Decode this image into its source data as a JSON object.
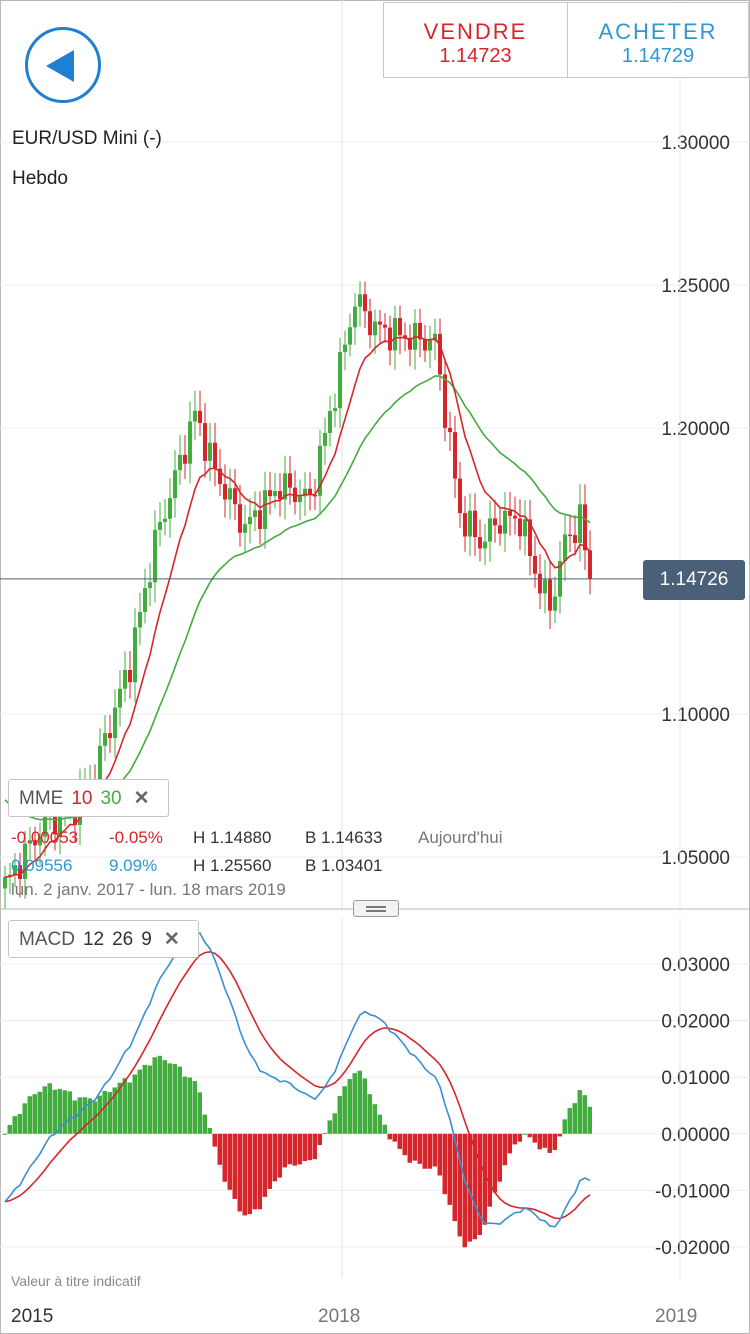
{
  "header": {
    "sell": {
      "label": "VENDRE",
      "price": "1.14723"
    },
    "buy": {
      "label": "ACHETER",
      "price": "1.14729"
    }
  },
  "instrument": "EUR/USD Mini (-)",
  "period": "Hebdo",
  "current_price": "1.14726",
  "mme_box": {
    "label": "MME",
    "p1": "10",
    "p2": "30"
  },
  "stats": {
    "row1": {
      "change": "-0.00053",
      "pct": "-0.05%",
      "high": "H 1.14880",
      "low": "B 1.14633",
      "label": "Aujourd'hui"
    },
    "row2": {
      "change": "0.09556",
      "pct": "9.09%",
      "high": "H 1.25560",
      "low": "B 1.03401"
    },
    "range": "lun. 2 janv. 2017 - lun. 18 mars 2019"
  },
  "macd_box": {
    "label": "MACD",
    "p1": "12",
    "p2": "26",
    "p3": "9"
  },
  "disclaimer": "Valeur à titre indicatif",
  "x_labels": [
    "2015",
    "2018",
    "2019"
  ],
  "colors": {
    "up": "#43ac3f",
    "down": "#d6262c",
    "ema10": "#d6262c",
    "ema30": "#43ac3f",
    "macd": "#3a8fd3",
    "signal": "#d6262c",
    "accent": "#1f7fd1"
  },
  "chart_data": [
    {
      "type": "candlestick",
      "ylim": [
        1.025,
        1.32
      ],
      "y_ticks": [
        "1.30000",
        "1.25000",
        "1.20000",
        "1.10000",
        "1.05000"
      ],
      "tick_values": [
        1.3,
        1.25,
        1.2,
        1.1,
        1.05
      ],
      "weeks": 118,
      "last": 1.14726,
      "series": [
        {
          "name": "MME 10"
        },
        {
          "name": "MME 30"
        }
      ],
      "anchors": [
        [
          0,
          1.04
        ],
        [
          8,
          1.062
        ],
        [
          14,
          1.068
        ],
        [
          18,
          1.08
        ],
        [
          25,
          1.118
        ],
        [
          30,
          1.16
        ],
        [
          38,
          1.205
        ],
        [
          42,
          1.185
        ],
        [
          48,
          1.165
        ],
        [
          55,
          1.18
        ],
        [
          61,
          1.175
        ],
        [
          65,
          1.205
        ],
        [
          70,
          1.245
        ],
        [
          74,
          1.235
        ],
        [
          80,
          1.232
        ],
        [
          86,
          1.23
        ],
        [
          91,
          1.17
        ],
        [
          95,
          1.16
        ],
        [
          99,
          1.168
        ],
        [
          103,
          1.168
        ],
        [
          106,
          1.15
        ],
        [
          109,
          1.137
        ],
        [
          112,
          1.16
        ],
        [
          115,
          1.168
        ],
        [
          117,
          1.147
        ]
      ]
    },
    {
      "type": "bar",
      "ylim": [
        -0.0275,
        0.0365
      ],
      "y_ticks": [
        "0.03000",
        "0.02000",
        "0.01000",
        "0.00000",
        "-0.01000",
        "-0.02000"
      ],
      "tick_values": [
        0.03,
        0.02,
        0.01,
        0.0,
        -0.01,
        -0.02
      ],
      "series": [
        {
          "name": "MACD"
        },
        {
          "name": "Signal"
        },
        {
          "name": "Histogram"
        }
      ]
    }
  ]
}
